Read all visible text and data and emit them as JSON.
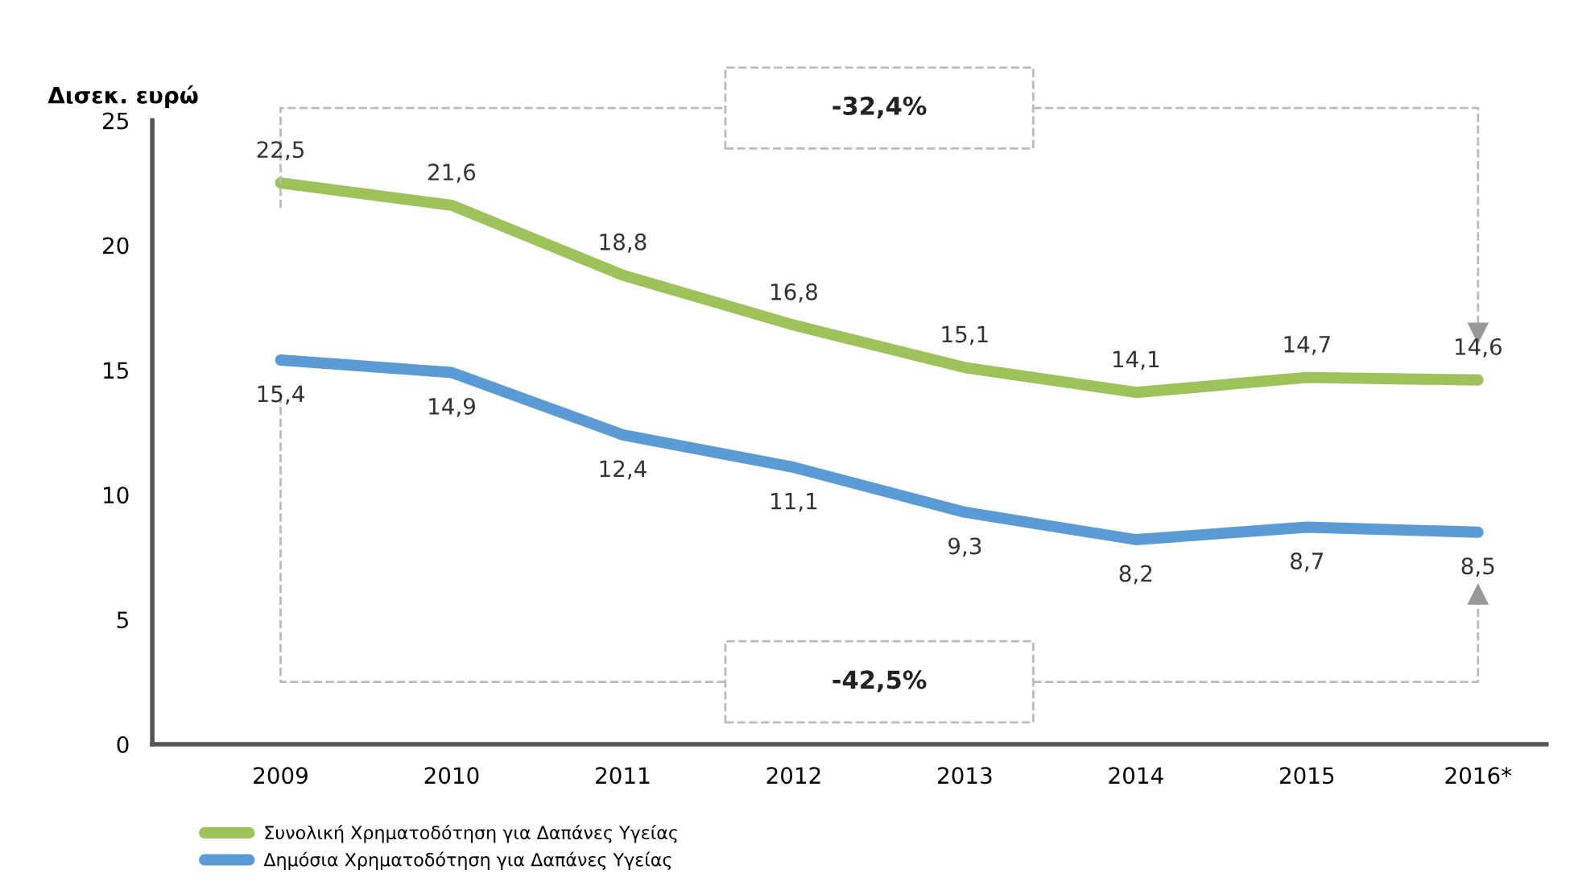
{
  "chart_data": {
    "type": "line",
    "ylabel": "Δισεκ. ευρώ",
    "categories": [
      "2009",
      "2010",
      "2011",
      "2012",
      "2013",
      "2014",
      "2015",
      "2016*"
    ],
    "series": [
      {
        "name": "Συνολική Χρηματοδότηση για Δαπάνες Υγείας",
        "color": "#9dc25a",
        "values": [
          22.5,
          21.6,
          18.8,
          16.8,
          15.1,
          14.1,
          14.7,
          14.6
        ],
        "value_labels": [
          "22,5",
          "21,6",
          "18,8",
          "16,8",
          "15,1",
          "14,1",
          "14,7",
          "14,6"
        ]
      },
      {
        "name": "Δημόσια Χρηματοδότηση για Δαπάνες Υγείας",
        "color": "#5b9bd5",
        "values": [
          15.4,
          14.9,
          12.4,
          11.1,
          9.3,
          8.2,
          8.7,
          8.5
        ],
        "value_labels": [
          "15,4",
          "14,9",
          "12,4",
          "11,1",
          "9,3",
          "8,2",
          "8,7",
          "8,5"
        ]
      }
    ],
    "ylim": [
      0,
      25
    ],
    "yticks": [
      0,
      5,
      10,
      15,
      20,
      25
    ],
    "grid": false,
    "legend": "bottom left",
    "annotations": [
      "-32,4%",
      "-42,5%"
    ]
  }
}
